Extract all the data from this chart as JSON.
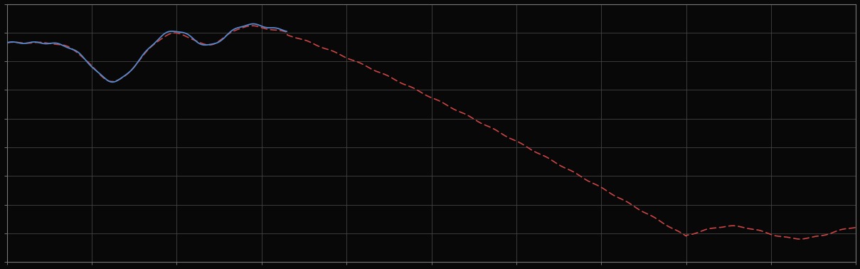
{
  "background_color": "#080808",
  "plot_bg_color": "#080808",
  "grid_color": "#4a4a4a",
  "blue_color": "#5588cc",
  "red_color": "#cc4444",
  "figsize": [
    12.09,
    3.78
  ],
  "dpi": 100,
  "xlim": [
    0,
    1
  ],
  "ylim": [
    0,
    1
  ],
  "spine_color": "#777777"
}
